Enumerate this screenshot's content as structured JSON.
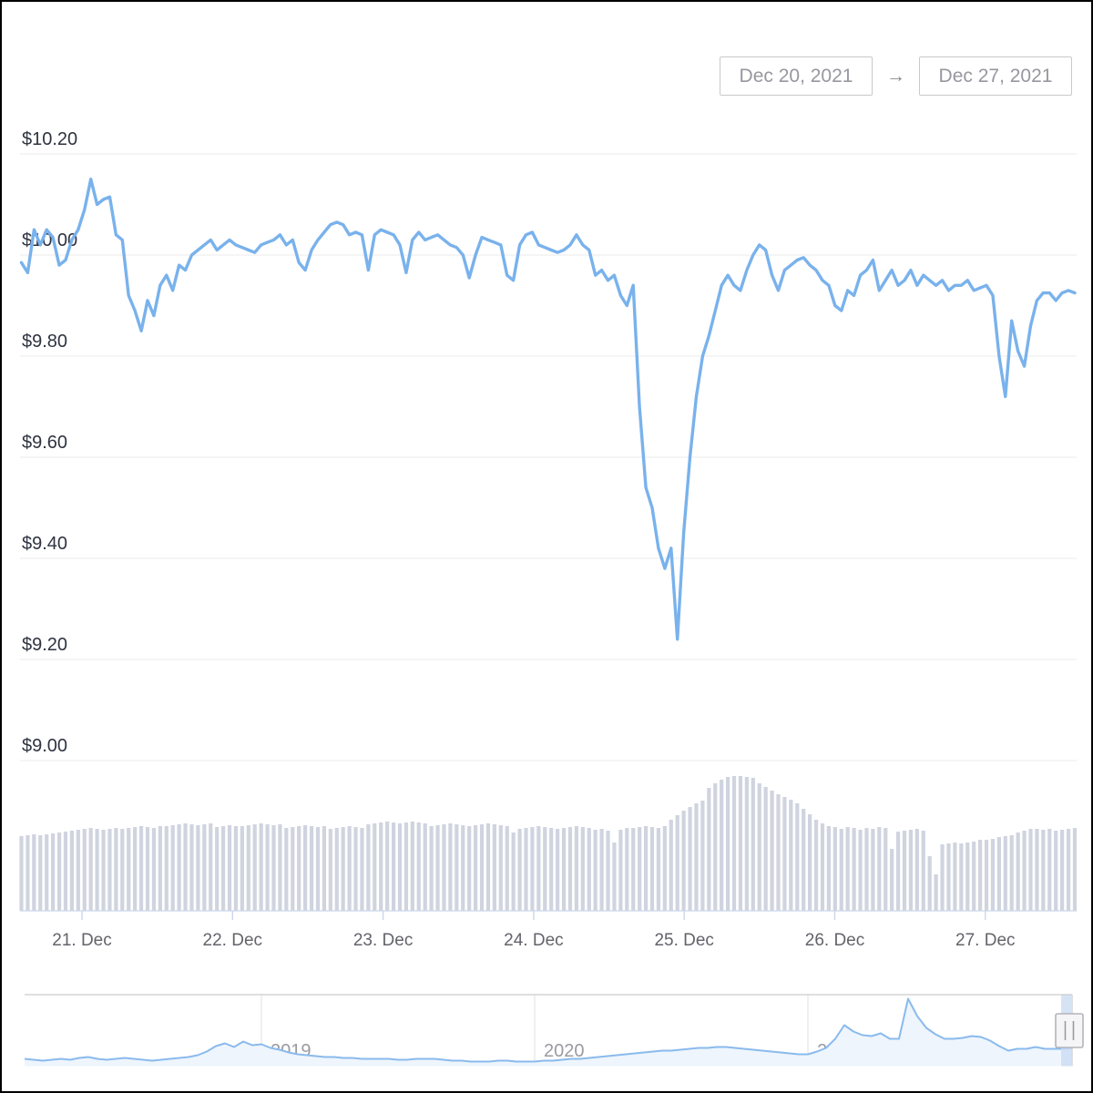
{
  "date_range": {
    "start_label": "Dec 20, 2021",
    "arrow": "→",
    "end_label": "Dec 27, 2021"
  },
  "colors": {
    "price_line": "#79b2ec",
    "volume_bar": "#cfd4df",
    "gridline": "#efeff1",
    "axis": "#ccd6eb",
    "y_label": "#2e3340",
    "x_label": "#63636b",
    "nav_line": "#8abaed",
    "nav_fill": "#eef5fc",
    "nav_grid": "#e6e6e8",
    "nav_border": "#cccccc",
    "nav_mask": "#cadcf3",
    "handle_fill": "#f5f5f7",
    "handle_border": "#b3b3bb",
    "handle_grip": "#9a9aa2"
  },
  "chart_data": {
    "type": "line",
    "title": "",
    "currency": "USD",
    "y_axis": {
      "labels": [
        "$10.20",
        "$10.00",
        "$9.80",
        "$9.60",
        "$9.40",
        "$9.20",
        "$9.00"
      ],
      "values": [
        10.2,
        10.0,
        9.8,
        9.6,
        9.4,
        9.2,
        9.0
      ],
      "ylim": [
        8.97,
        10.23
      ],
      "grid": true
    },
    "x_axis": {
      "tick_labels": [
        "21. Dec",
        "22. Dec",
        "23. Dec",
        "24. Dec",
        "25. Dec",
        "26. Dec",
        "27. Dec"
      ],
      "span_hours": 168
    },
    "price_series": [
      9.985,
      9.965,
      10.05,
      10.02,
      10.05,
      10.035,
      9.98,
      9.99,
      10.03,
      10.05,
      10.09,
      10.15,
      10.1,
      10.11,
      10.115,
      10.04,
      10.03,
      9.92,
      9.89,
      9.85,
      9.91,
      9.88,
      9.94,
      9.96,
      9.93,
      9.98,
      9.97,
      10.0,
      10.01,
      10.02,
      10.03,
      10.01,
      10.02,
      10.03,
      10.02,
      10.015,
      10.01,
      10.005,
      10.02,
      10.025,
      10.03,
      10.04,
      10.02,
      10.03,
      9.985,
      9.97,
      10.01,
      10.03,
      10.045,
      10.06,
      10.065,
      10.06,
      10.04,
      10.045,
      10.04,
      9.97,
      10.04,
      10.05,
      10.045,
      10.04,
      10.02,
      9.965,
      10.03,
      10.045,
      10.03,
      10.035,
      10.04,
      10.03,
      10.02,
      10.015,
      10.0,
      9.955,
      10.0,
      10.035,
      10.03,
      10.025,
      10.02,
      9.96,
      9.95,
      10.02,
      10.04,
      10.045,
      10.02,
      10.015,
      10.01,
      10.005,
      10.01,
      10.02,
      10.04,
      10.02,
      10.01,
      9.96,
      9.97,
      9.95,
      9.96,
      9.92,
      9.9,
      9.94,
      9.7,
      9.54,
      9.5,
      9.42,
      9.38,
      9.42,
      9.24,
      9.45,
      9.6,
      9.72,
      9.8,
      9.84,
      9.89,
      9.94,
      9.96,
      9.94,
      9.93,
      9.97,
      10.0,
      10.02,
      10.01,
      9.96,
      9.93,
      9.97,
      9.98,
      9.99,
      9.995,
      9.98,
      9.97,
      9.95,
      9.94,
      9.9,
      9.89,
      9.93,
      9.92,
      9.96,
      9.97,
      9.99,
      9.93,
      9.95,
      9.97,
      9.94,
      9.95,
      9.97,
      9.94,
      9.96,
      9.95,
      9.94,
      9.95,
      9.93,
      9.94,
      9.94,
      9.95,
      9.93,
      9.935,
      9.94,
      9.92,
      9.8,
      9.72,
      9.87,
      9.81,
      9.78,
      9.86,
      9.91,
      9.925,
      9.925,
      9.91,
      9.925,
      9.93,
      9.925
    ],
    "volume_series_units": "relative height, no scale shown",
    "volume_series": [
      82,
      83,
      84,
      83,
      84,
      85,
      86,
      87,
      88,
      89,
      90,
      91,
      90,
      89,
      90,
      91,
      90,
      91,
      92,
      93,
      92,
      91,
      93,
      93,
      94,
      95,
      96,
      95,
      94,
      95,
      96,
      92,
      93,
      94,
      93,
      93,
      94,
      95,
      96,
      95,
      94,
      95,
      91,
      92,
      93,
      94,
      93,
      92,
      93,
      90,
      91,
      92,
      93,
      92,
      91,
      95,
      96,
      97,
      98,
      97,
      96,
      97,
      98,
      97,
      96,
      93,
      94,
      95,
      96,
      95,
      94,
      93,
      94,
      95,
      96,
      95,
      94,
      93,
      86,
      90,
      91,
      92,
      93,
      92,
      91,
      90,
      91,
      92,
      93,
      92,
      91,
      89,
      90,
      88,
      75,
      89,
      91,
      91,
      92,
      93,
      92,
      91,
      93,
      100,
      105,
      110,
      114,
      118,
      121,
      135,
      140,
      144,
      147,
      148,
      148,
      147,
      146,
      140,
      136,
      132,
      128,
      125,
      122,
      118,
      112,
      106,
      100,
      96,
      93,
      92,
      90,
      92,
      91,
      89,
      91,
      90,
      92,
      91,
      68,
      87,
      88,
      89,
      90,
      88,
      60,
      40,
      73,
      74,
      75,
      74,
      75,
      76,
      78,
      78,
      79,
      81,
      82,
      83,
      86,
      88,
      90,
      90,
      89,
      90,
      88,
      89,
      90,
      91
    ],
    "navigator": {
      "year_labels": [
        "2019",
        "2020",
        "2021"
      ],
      "values_units": "relative height, no scale shown",
      "values": [
        8,
        7,
        6,
        7,
        8,
        7,
        9,
        10,
        8,
        7,
        8,
        9,
        8,
        7,
        6,
        7,
        8,
        9,
        10,
        12,
        16,
        22,
        25,
        21,
        27,
        23,
        24,
        20,
        18,
        15,
        13,
        12,
        11,
        10,
        10,
        9,
        9,
        8,
        8,
        8,
        8,
        7,
        7,
        8,
        8,
        8,
        7,
        6,
        6,
        5,
        5,
        5,
        6,
        6,
        5,
        5,
        5,
        6,
        6,
        7,
        8,
        8,
        9,
        10,
        11,
        12,
        13,
        14,
        15,
        16,
        17,
        17,
        18,
        19,
        20,
        20,
        21,
        21,
        20,
        19,
        18,
        17,
        16,
        15,
        14,
        13,
        13,
        16,
        20,
        30,
        45,
        38,
        34,
        33,
        36,
        30,
        30,
        74,
        55,
        42,
        35,
        30,
        30,
        31,
        33,
        32,
        28,
        22,
        17,
        19,
        19,
        21,
        19,
        19,
        19,
        20
      ]
    }
  }
}
